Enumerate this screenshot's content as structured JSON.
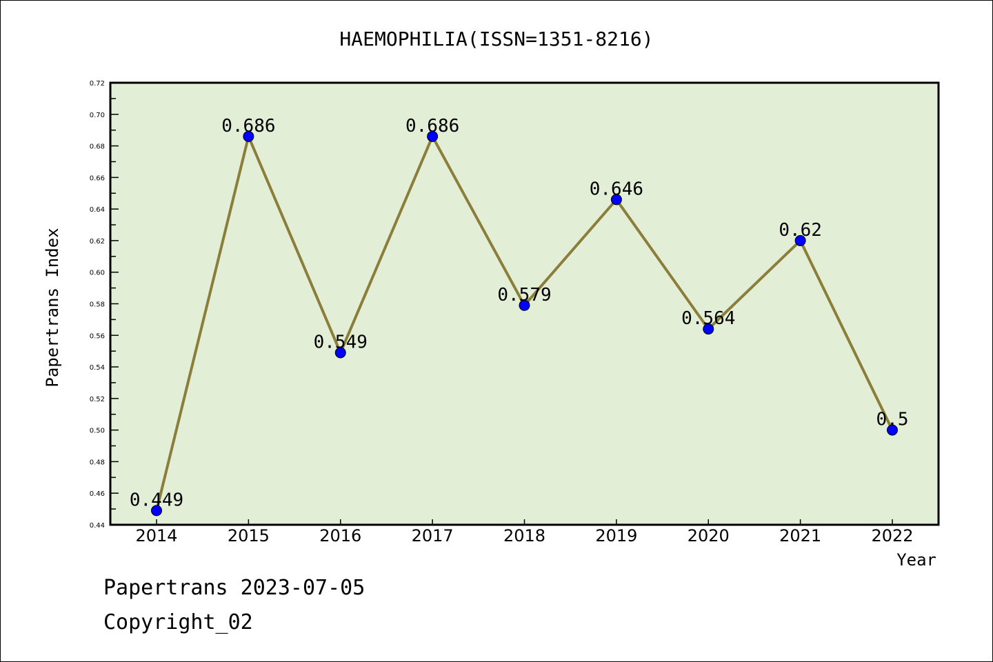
{
  "chart_data": {
    "type": "line",
    "title": "HAEMOPHILIA(ISSN=1351-8216)",
    "xlabel": "Year",
    "ylabel": "Papertrans Index",
    "categories": [
      "2014",
      "2015",
      "2016",
      "2017",
      "2018",
      "2019",
      "2020",
      "2021",
      "2022"
    ],
    "values": [
      0.449,
      0.686,
      0.549,
      0.686,
      0.579,
      0.646,
      0.564,
      0.62,
      0.5
    ],
    "data_labels": [
      "0.449",
      "0.686",
      "0.549",
      "0.686",
      "0.579",
      "0.646",
      "0.564",
      "0.62",
      "0.5"
    ],
    "ylim": [
      0.44,
      0.72
    ],
    "yticks": [
      "0.44",
      "0.46",
      "0.48",
      "0.50",
      "0.52",
      "0.54",
      "0.56",
      "0.58",
      "0.60",
      "0.62",
      "0.64",
      "0.66",
      "0.68",
      "0.70",
      "0.72"
    ],
    "grid": false,
    "colors": {
      "background": "#e2efd6",
      "line": "#8b7d3a",
      "marker": "#0000ff"
    }
  },
  "footer": {
    "line1": "Papertrans 2023-07-05",
    "line2": "Copyright_02"
  }
}
